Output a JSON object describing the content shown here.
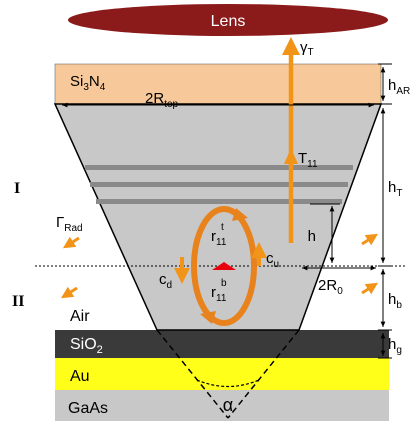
{
  "labels": {
    "lens": "Lens",
    "gamma_t_main": "γ",
    "gamma_t_sub": "T",
    "si3n4_a": "Si",
    "si3n4_s1": "3",
    "si3n4_b": "N",
    "si3n4_s2": "4",
    "r_top_main": "2R",
    "r_top_sub": "top",
    "h_ar_main": "h",
    "h_ar_sub": "AR",
    "region_i": "I",
    "region_ii": "II",
    "h_t_main": "h",
    "h_t_sub": "T",
    "t11_main": "T",
    "t11_sub": "11",
    "gamma_rad_main": "Γ",
    "gamma_rad_sub": "Rad",
    "h": "h",
    "r_top_r": "r",
    "r_top_r_sub": "11",
    "r_top_r_sup": "t",
    "r_bot_r": "r",
    "r_bot_r_sub": "11",
    "r_bot_r_sup": "b",
    "cd_main": "c",
    "cd_sub": "d",
    "cu_main": "c",
    "cu_sub": "u",
    "r0_main": "2R",
    "r0_sub": "0",
    "h_b_main": "h",
    "h_b_sub": "b",
    "air": "Air",
    "sio2_a": "SiO",
    "sio2_sub": "2",
    "h_g_main": "h",
    "h_g_sub": "g",
    "au": "Au",
    "alpha": "α",
    "gaas": "GaAs"
  },
  "colors": {
    "lens": "#8b1a1a",
    "si3n4": "#f7c99a",
    "cone": "#c8c8c8",
    "dbr": "#8a8a8a",
    "sio2": "#3a3a3a",
    "au": "#ffff1a",
    "gaas": "#c8c8c8",
    "arrow": "#f29418",
    "ring": "#e8821c",
    "dipole": "#e8000b"
  }
}
